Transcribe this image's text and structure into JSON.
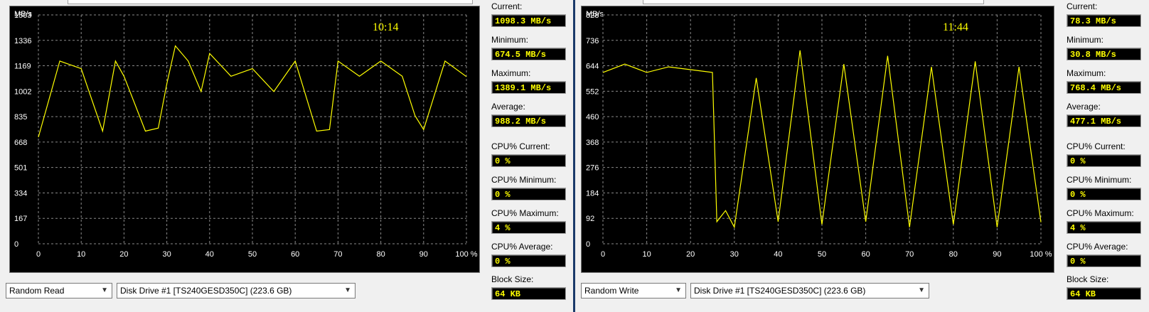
{
  "left": {
    "clock": "10:14",
    "y_unit": "MB/s",
    "y_ticks": [
      "1503",
      "1336",
      "1169",
      "1002",
      "835",
      "668",
      "501",
      "334",
      "167",
      "0"
    ],
    "x_ticks": [
      "0",
      "10",
      "20",
      "30",
      "40",
      "50",
      "60",
      "70",
      "80",
      "90",
      "100 %"
    ],
    "test_select": "Random Read",
    "drive_select": "Disk Drive #1  [TS240GESD350C]  (223.6 GB)",
    "stats": {
      "current_label": "Current:",
      "current": "1098.3 MB/s",
      "minimum_label": "Minimum:",
      "minimum": "674.5 MB/s",
      "maximum_label": "Maximum:",
      "maximum": "1389.1 MB/s",
      "average_label": "Average:",
      "average": "988.2 MB/s",
      "cpu_current_label": "CPU% Current:",
      "cpu_current": "0 %",
      "cpu_minimum_label": "CPU% Minimum:",
      "cpu_minimum": "0 %",
      "cpu_maximum_label": "CPU% Maximum:",
      "cpu_maximum": "4 %",
      "cpu_average_label": "CPU% Average:",
      "cpu_average": "0 %",
      "block_size_label": "Block Size:",
      "block_size": "64 KB"
    }
  },
  "right": {
    "clock": "11:44",
    "y_unit": "MB/s",
    "y_ticks": [
      "828",
      "736",
      "644",
      "552",
      "460",
      "368",
      "276",
      "184",
      "92",
      "0"
    ],
    "x_ticks": [
      "0",
      "10",
      "20",
      "30",
      "40",
      "50",
      "60",
      "70",
      "80",
      "90",
      "100 %"
    ],
    "test_select": "Random Write",
    "drive_select": "Disk Drive #1  [TS240GESD350C]  (223.6 GB)",
    "stats": {
      "current_label": "Current:",
      "current": "78.3 MB/s",
      "minimum_label": "Minimum:",
      "minimum": "30.8 MB/s",
      "maximum_label": "Maximum:",
      "maximum": "768.4 MB/s",
      "average_label": "Average:",
      "average": "477.1 MB/s",
      "cpu_current_label": "CPU% Current:",
      "cpu_current": "0 %",
      "cpu_minimum_label": "CPU% Minimum:",
      "cpu_minimum": "0 %",
      "cpu_maximum_label": "CPU% Maximum:",
      "cpu_maximum": "4 %",
      "cpu_average_label": "CPU% Average:",
      "cpu_average": "0 %",
      "block_size_label": "Block Size:",
      "block_size": "64 KB"
    }
  },
  "colors": {
    "trace": "#ffff00",
    "clock": "#ffff00",
    "grid": "#8a8a8a",
    "chart_bg": "#000000"
  },
  "chart_data": [
    {
      "type": "line",
      "series": [
        {
          "x": [
            0,
            5,
            10,
            15,
            18,
            20,
            25,
            28,
            30,
            32,
            35,
            38,
            40,
            45,
            50,
            55,
            60,
            65,
            68,
            70,
            75,
            80,
            85,
            88,
            90,
            95,
            100
          ],
          "y": [
            700,
            1200,
            1150,
            740,
            1200,
            1100,
            740,
            760,
            1050,
            1300,
            1200,
            1000,
            1250,
            1100,
            1150,
            1000,
            1200,
            740,
            750,
            1200,
            1100,
            1200,
            1100,
            840,
            750,
            1200,
            1098
          ]
        }
      ],
      "xlim": [
        0,
        100
      ],
      "ylim": [
        0,
        1503
      ],
      "ylabel": "MB/s"
    },
    {
      "type": "line",
      "series": [
        {
          "x": [
            0,
            5,
            10,
            15,
            20,
            25,
            26,
            28,
            30,
            35,
            40,
            45,
            50,
            55,
            60,
            65,
            70,
            75,
            80,
            85,
            90,
            95,
            100
          ],
          "y": [
            620,
            650,
            620,
            640,
            630,
            620,
            80,
            120,
            60,
            600,
            80,
            700,
            70,
            650,
            80,
            680,
            60,
            640,
            70,
            660,
            60,
            640,
            78
          ]
        }
      ],
      "xlim": [
        0,
        100
      ],
      "ylim": [
        0,
        828
      ],
      "ylabel": "MB/s"
    }
  ]
}
